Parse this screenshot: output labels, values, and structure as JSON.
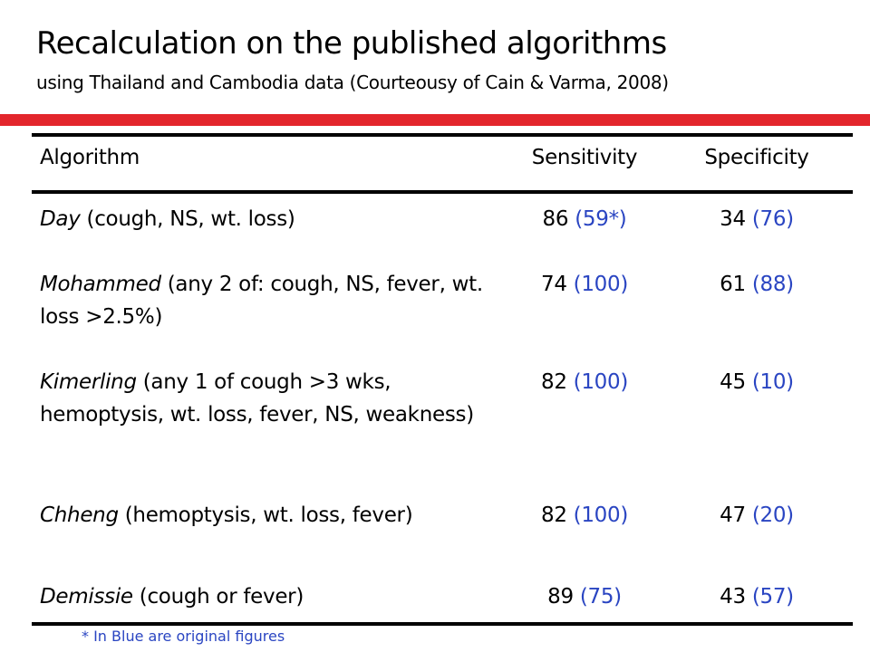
{
  "title": "Recalculation on the published algorithms",
  "subtitle": "using Thailand and Cambodia data (Courteousy of Cain & Varma, 2008)",
  "colors": {
    "accent_bar": "#e3262c",
    "original_figures": "#2a45c2"
  },
  "table": {
    "headers": {
      "algorithm": "Algorithm",
      "sensitivity": "Sensitivity",
      "specificity": "Specificity"
    },
    "rows": [
      {
        "name": "Day",
        "criteria": " (cough, NS, wt. loss)",
        "sens": "86",
        "sens_orig": " (59*)",
        "spec": "34",
        "spec_orig": " (76)"
      },
      {
        "name": "Mohammed",
        "criteria": " (any 2 of: cough, NS, fever, wt. loss >2.5%)",
        "sens": "74",
        "sens_orig": " (100)",
        "spec": "61",
        "spec_orig": " (88)"
      },
      {
        "name": "Kimerling",
        "criteria": " (any 1 of cough >3 wks, hemoptysis, wt. loss, fever, NS, weakness)",
        "sens": "82",
        "sens_orig": " (100)",
        "spec": "45",
        "spec_orig": " (10)"
      },
      {
        "name": "Chheng",
        "criteria": " (hemoptysis, wt. loss, fever)",
        "sens": "82",
        "sens_orig": " (100)",
        "spec": "47",
        "spec_orig": " (20)"
      },
      {
        "name": "Demissie",
        "criteria": " (cough or fever)",
        "sens": "89",
        "sens_orig": " (75)",
        "spec": "43",
        "spec_orig": " (57)"
      }
    ]
  },
  "footnote": "* In Blue are original figures"
}
